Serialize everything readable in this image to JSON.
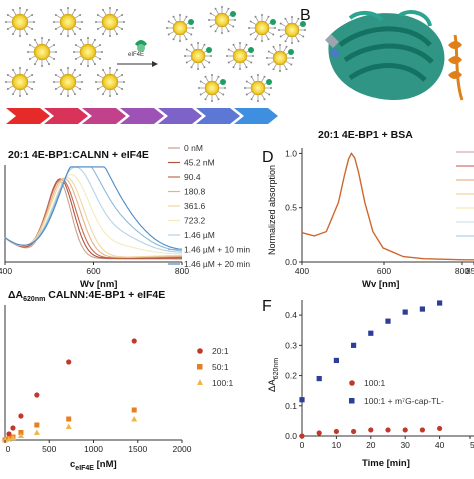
{
  "panel_a": {
    "arrow_label": "eIF4E"
  },
  "panel_b": {
    "letter": "B"
  },
  "panel_c": {
    "title": "20:1 4E-BP1:CALNN + eIF4E",
    "xlabel": "Wv [nm]",
    "xticks": [
      "400",
      "600",
      "800"
    ],
    "legend": [
      "0 nM",
      "45.2 nM",
      "90.4",
      "180.8",
      "361.6",
      "723.2",
      "1.46 µM",
      "1.46 µM + 10 min",
      "1.46 µM + 20 min"
    ],
    "colors": [
      "#c9a08e",
      "#b1533f",
      "#c46a4c",
      "#e5b28b",
      "#efd7a0",
      "#f3ebbd",
      "#b5d3e6",
      "#8ab9da",
      "#4d89c6"
    ]
  },
  "panel_d": {
    "letter": "D",
    "title": "20:1 4E-BP1 + BSA",
    "ylabel": "Normalized absorption",
    "xlabel": "Wv [nm]",
    "xticks": [
      "400",
      "600",
      "800",
      "85"
    ],
    "yticks": [
      "0.0",
      "0.5",
      "1.0"
    ]
  },
  "panel_e": {
    "title_prefix": "ΔA",
    "title_sub": "620nm",
    "title_suffix": " CALNN:4E-BP1 + eIF4E",
    "xlabel_prefix": "c",
    "xlabel_sub": "eIF4E",
    "xlabel_suffix": " [nM]",
    "xticks": [
      "0",
      "500",
      "1000",
      "1500",
      "2000"
    ],
    "legend": [
      "20:1",
      "50:1",
      "100:1"
    ]
  },
  "panel_f": {
    "letter": "F",
    "ylabel_prefix": "ΔA",
    "ylabel_sub": "620nm",
    "xlabel": "Time [min]",
    "xticks": [
      "0",
      "10",
      "20",
      "30",
      "40",
      "5"
    ],
    "yticks": [
      "0.0",
      "0.1",
      "0.2",
      "0.3",
      "0.4"
    ],
    "legend": [
      "100:1",
      "100:1 + m⁷G-cap-TL-"
    ]
  },
  "chart_data": [
    {
      "type": "line",
      "panel": "C",
      "title": "20:1 4E-BP1:CALNN + eIF4E",
      "xlabel": "Wv [nm]",
      "xlim": [
        400,
        800
      ],
      "series": [
        {
          "name": "0 nM",
          "peak_x": 522,
          "peak_y": 0.78
        },
        {
          "name": "45.2 nM",
          "peak_x": 525,
          "peak_y": 0.8
        },
        {
          "name": "90.4",
          "peak_x": 528,
          "peak_y": 0.8
        },
        {
          "name": "180.8",
          "peak_x": 534,
          "peak_y": 0.81
        },
        {
          "name": "361.6",
          "peak_x": 540,
          "peak_y": 0.82
        },
        {
          "name": "723.2",
          "peak_x": 548,
          "peak_y": 0.81
        },
        {
          "name": "1.46 µM",
          "peak_x": 555,
          "peak_y": 0.83
        },
        {
          "name": "1.46 µM + 10 min",
          "peak_x": 562,
          "peak_y": 0.84
        },
        {
          "name": "1.46 µM + 20 min",
          "peak_x": 570,
          "peak_y": 0.86
        }
      ]
    },
    {
      "type": "line",
      "panel": "D",
      "title": "20:1 4E-BP1 + BSA",
      "xlabel": "Wv [nm]",
      "ylabel": "Normalized absorption",
      "xlim": [
        400,
        850
      ],
      "ylim": [
        0,
        1.05
      ],
      "series": [
        {
          "x": [
            400,
            430,
            460,
            490,
            505,
            515,
            522,
            530,
            540,
            555,
            575,
            600,
            650,
            700,
            800,
            850
          ],
          "y": [
            0.27,
            0.24,
            0.28,
            0.55,
            0.8,
            0.95,
            1.0,
            0.96,
            0.82,
            0.55,
            0.28,
            0.13,
            0.05,
            0.03,
            0.02,
            0.02
          ]
        }
      ]
    },
    {
      "type": "scatter",
      "panel": "E",
      "xlabel": "c eIF4E [nM]",
      "xlim": [
        0,
        2000
      ],
      "ylim": [
        0,
        0.45
      ],
      "series": [
        {
          "name": "20:1",
          "x": [
            0,
            45,
            90,
            180,
            360,
            720,
            1460
          ],
          "y": [
            0.0,
            0.02,
            0.04,
            0.08,
            0.15,
            0.26,
            0.33
          ]
        },
        {
          "name": "50:1",
          "x": [
            0,
            45,
            90,
            180,
            360,
            720,
            1460
          ],
          "y": [
            0.0,
            0.005,
            0.01,
            0.025,
            0.05,
            0.07,
            0.1
          ]
        },
        {
          "name": "100:1",
          "x": [
            0,
            45,
            90,
            180,
            360,
            720,
            1460
          ],
          "y": [
            0.0,
            0.003,
            0.008,
            0.015,
            0.025,
            0.045,
            0.07
          ]
        }
      ]
    },
    {
      "type": "scatter",
      "panel": "F",
      "xlabel": "Time [min]",
      "ylabel": "ΔA620nm",
      "xlim": [
        0,
        50
      ],
      "ylim": [
        0,
        0.45
      ],
      "series": [
        {
          "name": "100:1",
          "x": [
            0,
            5,
            10,
            15,
            20,
            25,
            30,
            35,
            40
          ],
          "y": [
            0.0,
            0.01,
            0.015,
            0.015,
            0.02,
            0.02,
            0.02,
            0.02,
            0.025
          ]
        },
        {
          "name": "100:1 + m⁷G-cap-TL-",
          "x": [
            0,
            5,
            10,
            15,
            20,
            25,
            30,
            35,
            40
          ],
          "y": [
            0.12,
            0.19,
            0.25,
            0.3,
            0.34,
            0.38,
            0.41,
            0.42,
            0.44
          ]
        }
      ]
    }
  ]
}
